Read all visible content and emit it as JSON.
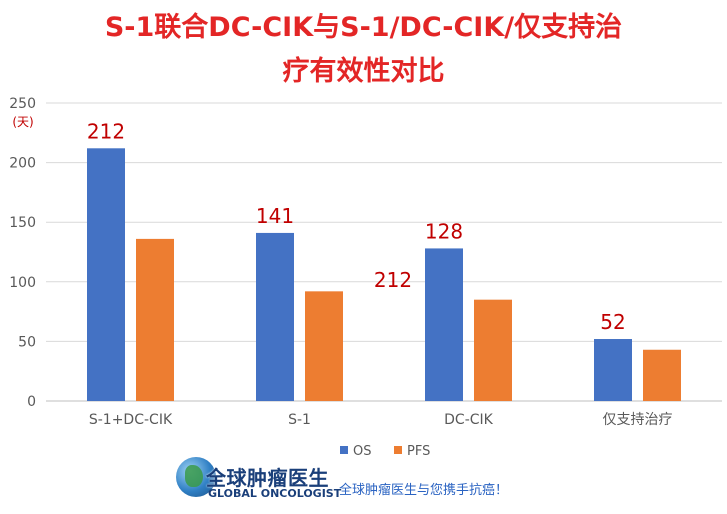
{
  "title_line1": "S-1联合DC-CIK与S-1/DC-CIK/仅支持治",
  "title_line2": "疗有效性对比",
  "chart_data": {
    "type": "bar",
    "categories": [
      "S-1+DC-CIK",
      "S-1",
      "DC-CIK",
      "仅支持治疗"
    ],
    "series": [
      {
        "name": "OS",
        "values": [
          212,
          141,
          128,
          52
        ],
        "color": "#4472c4"
      },
      {
        "name": "PFS",
        "values": [
          136,
          92,
          85,
          43
        ],
        "color": "#ed7d31"
      }
    ],
    "data_labels": [
      "212",
      "141",
      "128",
      "52"
    ],
    "extra_annotation": "212",
    "ylabel": "(天)",
    "ylim": [
      0,
      250
    ],
    "yticks": [
      0,
      50,
      100,
      150,
      200,
      250
    ],
    "grid": true,
    "legend_position": "bottom"
  },
  "footer": {
    "logo_cn": "全球肿瘤医生",
    "logo_en": "GLOBAL ONCOLOGIST",
    "slogan": "全球肿瘤医生与您携手抗癌！"
  },
  "colors": {
    "title": "#e32626",
    "data_label": "#c00000",
    "os": "#4472c4",
    "pfs": "#ed7d31",
    "grid": "#d9d9d9",
    "axis_text": "#595959",
    "slogan": "#2a63c2",
    "logo": "#1a3f7a"
  }
}
